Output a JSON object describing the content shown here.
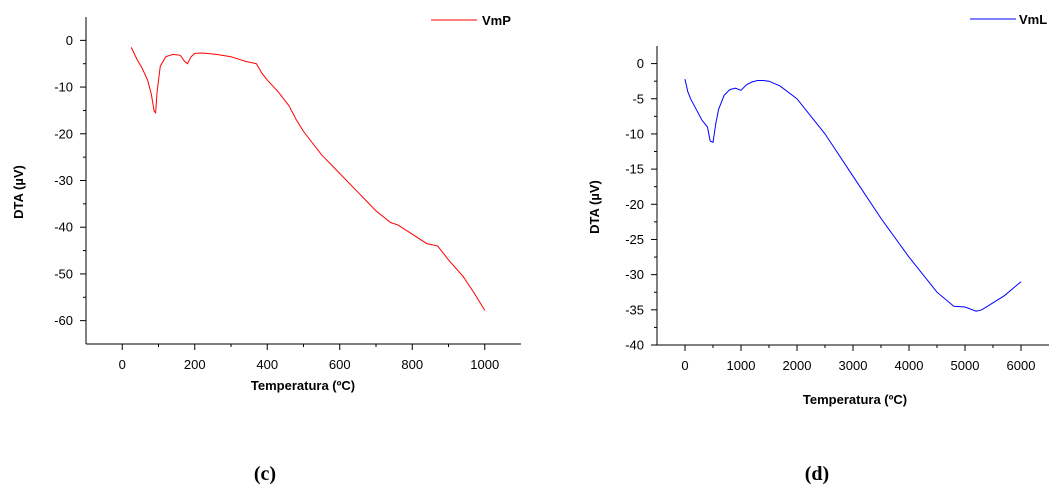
{
  "chart_data": [
    {
      "type": "line",
      "xlabel": "Temperatura (ºC)",
      "ylabel": "DTA (µV)",
      "caption": "(c)",
      "legend_position": "top-right",
      "grid": false,
      "xlim": [
        -100,
        1100
      ],
      "ylim": [
        -65,
        5
      ],
      "xticks": [
        0,
        200,
        400,
        600,
        800,
        1000
      ],
      "yticks": [
        0,
        -10,
        -20,
        -30,
        -40,
        -50,
        -60
      ],
      "series": [
        {
          "name": "VmP",
          "color": "#ff0000",
          "x": [
            25,
            40,
            55,
            70,
            80,
            88,
            92,
            96,
            105,
            120,
            140,
            160,
            172,
            180,
            190,
            200,
            220,
            260,
            300,
            340,
            370,
            385,
            400,
            430,
            460,
            480,
            500,
            550,
            600,
            650,
            700,
            740,
            760,
            800,
            840,
            870,
            900,
            940,
            970,
            1000
          ],
          "y": [
            -1.5,
            -4,
            -6,
            -8.5,
            -11.5,
            -15.2,
            -15.5,
            -11,
            -5.5,
            -3.5,
            -3,
            -3.2,
            -4.5,
            -5,
            -3.5,
            -2.8,
            -2.7,
            -3,
            -3.5,
            -4.5,
            -5,
            -7,
            -8.5,
            -11,
            -14,
            -17,
            -19.5,
            -24.5,
            -28.5,
            -32.5,
            -36.5,
            -39,
            -39.5,
            -41.5,
            -43.5,
            -44,
            -47,
            -50.5,
            -54,
            -57.8
          ]
        }
      ]
    },
    {
      "type": "line",
      "xlabel": "Temperatura (ºC)",
      "ylabel": "DTA (µV)",
      "caption": "(d)",
      "legend_position": "top-right",
      "grid": false,
      "xlim": [
        -500,
        6500
      ],
      "ylim": [
        -40,
        2.5
      ],
      "xticks": [
        0,
        1000,
        2000,
        3000,
        4000,
        5000,
        6000
      ],
      "yticks": [
        0,
        -5,
        -10,
        -15,
        -20,
        -25,
        -30,
        -35,
        -40
      ],
      "series": [
        {
          "name": "VmL",
          "color": "#0000ff",
          "x": [
            0,
            50,
            100,
            200,
            300,
            400,
            450,
            500,
            550,
            600,
            700,
            800,
            900,
            1000,
            1100,
            1200,
            1300,
            1400,
            1500,
            1700,
            2000,
            2500,
            3000,
            3500,
            4000,
            4500,
            4800,
            5000,
            5200,
            5300,
            5500,
            5700,
            5850,
            6000
          ],
          "y": [
            -2.2,
            -4,
            -5,
            -6.5,
            -8,
            -9,
            -11,
            -11.2,
            -8.5,
            -6.5,
            -4.5,
            -3.7,
            -3.5,
            -3.8,
            -3,
            -2.6,
            -2.4,
            -2.4,
            -2.5,
            -3.2,
            -5,
            -10,
            -16,
            -22,
            -27.5,
            -32.5,
            -34.5,
            -34.6,
            -35.2,
            -35,
            -34,
            -33,
            -32,
            -31
          ]
        }
      ]
    }
  ]
}
